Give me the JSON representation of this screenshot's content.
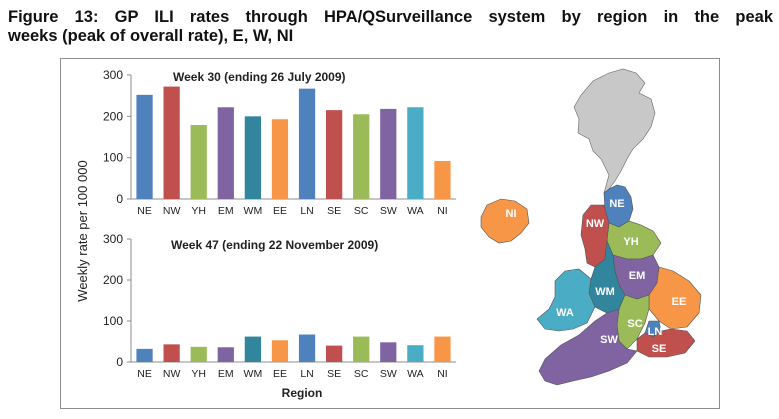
{
  "caption": {
    "line1": "Figure 13: GP ILI rates through HPA/QSurveillance system by region in the peak",
    "line2": "weeks (peak of overall rate), E, W, NI"
  },
  "shared_axes": {
    "ylabel": "Weekly rate per 100 000",
    "xlabel": "Region"
  },
  "colors": {
    "NE": "#4f81bd",
    "NW": "#c0504d",
    "YH": "#9bbb59",
    "EM": "#8064a2",
    "WM": "#31859c",
    "EE": "#f79646",
    "LN": "#4f81bd",
    "SE": "#c0504d",
    "SC": "#9bbb59",
    "SW": "#8064a2",
    "WA": "#4bacc6",
    "NI": "#f79646"
  },
  "chart_data": [
    {
      "type": "bar",
      "title": "Week 30 (ending 26 July 2009)",
      "categories": [
        "NE",
        "NW",
        "YH",
        "EM",
        "WM",
        "EE",
        "LN",
        "SE",
        "SC",
        "SW",
        "WA",
        "NI"
      ],
      "values": [
        252,
        272,
        179,
        222,
        200,
        193,
        267,
        215,
        205,
        218,
        222,
        92
      ],
      "ylim": [
        0,
        300
      ],
      "yticks": [
        "0",
        "100",
        "200",
        "300"
      ],
      "grid": false,
      "legend": "none"
    },
    {
      "type": "bar",
      "title": "Week 47 (ending 22 November 2009)",
      "categories": [
        "NE",
        "NW",
        "YH",
        "EM",
        "WM",
        "EE",
        "LN",
        "SE",
        "SC",
        "SW",
        "WA",
        "NI"
      ],
      "values": [
        32,
        43,
        37,
        36,
        62,
        53,
        67,
        40,
        62,
        48,
        41,
        62
      ],
      "ylim": [
        0,
        300
      ],
      "yticks": [
        "0",
        "100",
        "200",
        "300"
      ],
      "grid": false,
      "legend": "none"
    }
  ],
  "map": {
    "labels": {
      "NE": "NE",
      "NW": "NW",
      "YH": "YH",
      "EM": "EM",
      "WM": "WM",
      "EE": "EE",
      "LN": "LN",
      "SE": "SE",
      "SC": "SC",
      "SW": "SW",
      "WA": "WA",
      "NI": "NI"
    },
    "scotland_color": "#c8c8c8"
  }
}
